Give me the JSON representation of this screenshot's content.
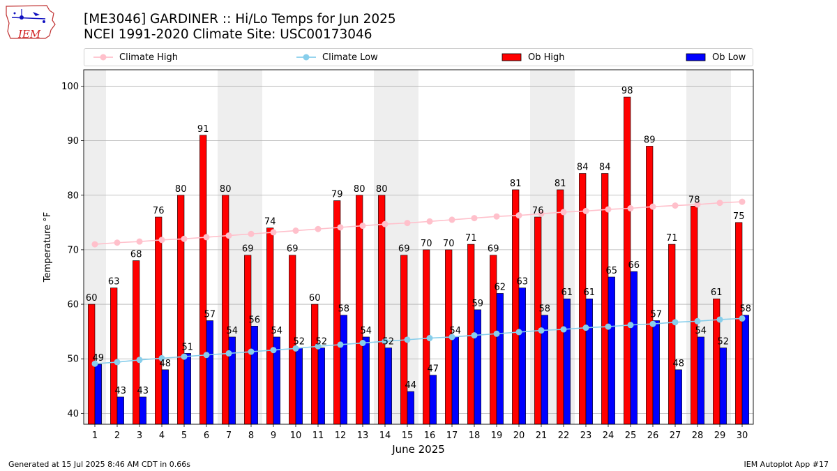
{
  "header": {
    "title_line1": "[ME3046] GARDINER :: Hi/Lo Temps for Jun 2025",
    "title_line2": "NCEI 1991-2020 Climate Site: USC00173046",
    "logo_text": "IEM"
  },
  "footer": {
    "generated": "Generated at 15 Jul 2025 8:46 AM CDT in 0.66s",
    "app": "IEM Autoplot App #17"
  },
  "legend": {
    "climate_high": "Climate High",
    "climate_low": "Climate Low",
    "ob_high": "Ob High",
    "ob_low": "Ob Low"
  },
  "colors": {
    "ob_high": "#ff0000",
    "ob_low": "#0000ff",
    "climate_high": "#ffc0cb",
    "climate_low": "#87ceeb",
    "weekend_shade": "#eeeeee",
    "grid": "#b0b0b0"
  },
  "chart_data": {
    "type": "bar",
    "xlabel": "June 2025",
    "ylabel": "Temperature °F",
    "ylim": [
      38,
      103
    ],
    "yticks": [
      40,
      50,
      60,
      70,
      80,
      90,
      100
    ],
    "grid": "horizontal",
    "legend_position": "top",
    "categories": [
      1,
      2,
      3,
      4,
      5,
      6,
      7,
      8,
      9,
      10,
      11,
      12,
      13,
      14,
      15,
      16,
      17,
      18,
      19,
      20,
      21,
      22,
      23,
      24,
      25,
      26,
      27,
      28,
      29,
      30
    ],
    "shaded_days": [
      1,
      7,
      8,
      14,
      15,
      21,
      22,
      28,
      29
    ],
    "series": [
      {
        "name": "Ob High",
        "kind": "bar",
        "values": [
          60,
          63,
          68,
          76,
          80,
          91,
          80,
          69,
          74,
          69,
          60,
          79,
          80,
          80,
          69,
          70,
          70,
          71,
          69,
          81,
          76,
          81,
          84,
          84,
          98,
          89,
          71,
          78,
          61,
          75
        ]
      },
      {
        "name": "Ob Low",
        "kind": "bar",
        "values": [
          49,
          43,
          43,
          48,
          51,
          57,
          54,
          56,
          54,
          52,
          52,
          58,
          54,
          52,
          44,
          47,
          54,
          59,
          62,
          63,
          58,
          61,
          61,
          65,
          66,
          57,
          48,
          54,
          52,
          58
        ]
      },
      {
        "name": "Climate High",
        "kind": "line",
        "values": [
          71.0,
          71.3,
          71.5,
          71.8,
          72.0,
          72.3,
          72.6,
          72.9,
          73.2,
          73.5,
          73.8,
          74.1,
          74.4,
          74.7,
          74.9,
          75.2,
          75.5,
          75.8,
          76.1,
          76.3,
          76.6,
          76.9,
          77.1,
          77.4,
          77.6,
          77.9,
          78.1,
          78.3,
          78.6,
          78.8
        ]
      },
      {
        "name": "Climate Low",
        "kind": "line",
        "values": [
          49.1,
          49.4,
          49.8,
          50.1,
          50.4,
          50.7,
          51.0,
          51.3,
          51.6,
          51.9,
          52.3,
          52.6,
          52.9,
          53.2,
          53.5,
          53.8,
          54.0,
          54.3,
          54.6,
          54.9,
          55.2,
          55.4,
          55.7,
          55.9,
          56.2,
          56.4,
          56.7,
          56.9,
          57.2,
          57.4
        ]
      }
    ]
  }
}
